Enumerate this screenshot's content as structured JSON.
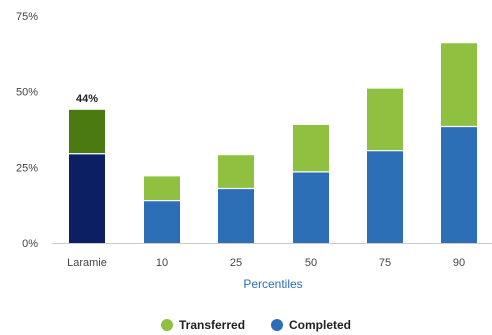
{
  "chart_data": {
    "type": "bar",
    "stacked": true,
    "categories": [
      "Laramie",
      "10",
      "25",
      "50",
      "75",
      "90"
    ],
    "series": [
      {
        "name": "Completed",
        "values": [
          29.5,
          14,
          18,
          23.5,
          30.5,
          38.5
        ]
      },
      {
        "name": "Transferred",
        "values": [
          14.5,
          8,
          11,
          15.5,
          20.5,
          27.5
        ]
      }
    ],
    "highlight_category": "Laramie",
    "data_labels": [
      {
        "category": "Laramie",
        "text": "44%"
      }
    ],
    "xlabel": "Percentiles",
    "ylabel": "",
    "ylim": [
      0,
      75
    ],
    "yticks": [
      "0%",
      "25%",
      "50%",
      "75%"
    ],
    "ytick_values": [
      0,
      25,
      50,
      75
    ],
    "grid": false,
    "legend": {
      "position": "bottom",
      "entries": [
        "Transferred",
        "Completed"
      ]
    },
    "colors": {
      "completed": "#2c6fb7",
      "transferred": "#8fc03f",
      "completed_highlight": "#0d1f63",
      "transferred_highlight": "#4b7a12",
      "axis": "#cccccc"
    }
  }
}
